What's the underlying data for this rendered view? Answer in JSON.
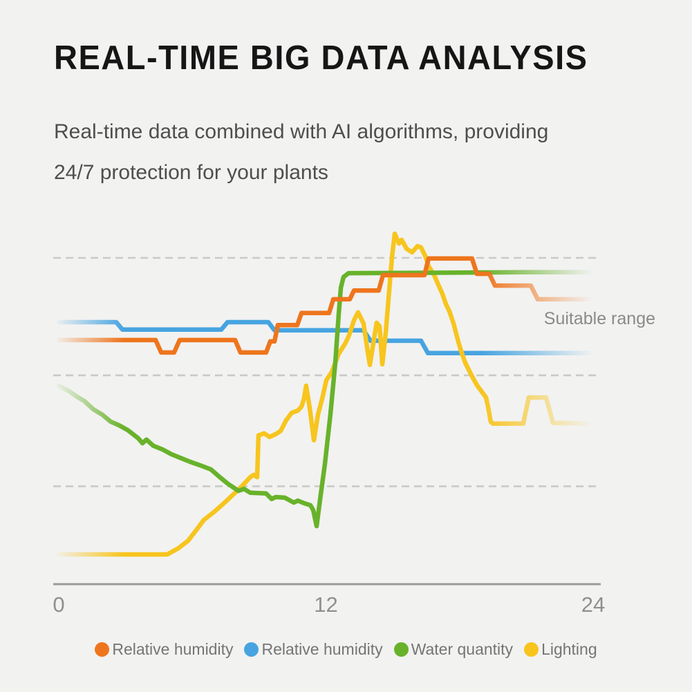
{
  "page": {
    "background": "#f2f2f1",
    "title": "REAL-TIME BIG DATA ANALYSIS",
    "subtitle_line1": "Real-time data combined with AI algorithms, providing",
    "subtitle_line2": "24/7 protection for your plants"
  },
  "chart_data": {
    "type": "line",
    "title": "",
    "xlabel": "",
    "ylabel": "",
    "annotation": "Suitable range",
    "x_axis": {
      "range": [
        0,
        24
      ],
      "ticks": [
        {
          "value": 0,
          "label": "0"
        },
        {
          "value": 12,
          "label": "12"
        },
        {
          "value": 24,
          "label": "24"
        }
      ]
    },
    "y_axis": {
      "range": [
        0,
        110
      ],
      "labels_visible": false,
      "gridline_values": [
        100,
        64,
        30
      ],
      "grid_style": "dashed"
    },
    "colors": {
      "orange": "#ee751d",
      "blue": "#47a4e0",
      "green": "#68b22b",
      "yellow": "#f7c51e",
      "gridline": "#c9c9c9",
      "axis": "#9b9b9b"
    },
    "series": [
      {
        "key": "relative-humidity-blue",
        "name": "Relative humidity",
        "color": "#47a4e0",
        "points": [
          [
            0,
            80.3
          ],
          [
            2.58,
            80.3
          ],
          [
            2.86,
            78
          ],
          [
            7.3,
            78
          ],
          [
            7.58,
            80.3
          ],
          [
            9.41,
            80.3
          ],
          [
            9.69,
            77.8
          ],
          [
            13.69,
            77.8
          ],
          [
            14,
            74.6
          ],
          [
            16.27,
            74.6
          ],
          [
            16.58,
            70.8
          ],
          [
            24,
            70.8
          ]
        ]
      },
      {
        "key": "lighting-yellow",
        "name": "Lighting",
        "color": "#f7c51e",
        "points": [
          [
            0,
            9.1
          ],
          [
            4.87,
            9.1
          ],
          [
            5.37,
            11
          ],
          [
            5.81,
            13.3
          ],
          [
            6.27,
            17.4
          ],
          [
            6.52,
            19.7
          ],
          [
            6.99,
            22.2
          ],
          [
            7.45,
            25
          ],
          [
            7.92,
            28
          ],
          [
            8.29,
            30.5
          ],
          [
            8.6,
            32.8
          ],
          [
            8.76,
            33.5
          ],
          [
            8.91,
            32.8
          ],
          [
            8.97,
            45.6
          ],
          [
            9.22,
            46.2
          ],
          [
            9.47,
            45.1
          ],
          [
            9.75,
            46
          ],
          [
            9.97,
            47
          ],
          [
            10.21,
            50.2
          ],
          [
            10.46,
            52.5
          ],
          [
            10.74,
            53.2
          ],
          [
            10.9,
            54.4
          ],
          [
            11.02,
            57
          ],
          [
            11.11,
            60.8
          ],
          [
            11.27,
            54
          ],
          [
            11.39,
            47.7
          ],
          [
            11.46,
            44.1
          ],
          [
            11.64,
            51.9
          ],
          [
            11.83,
            56.8
          ],
          [
            12.02,
            62.5
          ],
          [
            12.26,
            65
          ],
          [
            12.57,
            70.6
          ],
          [
            12.88,
            73.9
          ],
          [
            13.04,
            76.3
          ],
          [
            13.26,
            80.9
          ],
          [
            13.44,
            83.3
          ],
          [
            13.69,
            79.9
          ],
          [
            13.88,
            71
          ],
          [
            13.97,
            67.2
          ],
          [
            14.16,
            75.2
          ],
          [
            14.28,
            80.1
          ],
          [
            14.41,
            79
          ],
          [
            14.53,
            67.4
          ],
          [
            14.69,
            77.3
          ],
          [
            14.84,
            90
          ],
          [
            14.97,
            100.6
          ],
          [
            15.09,
            107.4
          ],
          [
            15.28,
            104.4
          ],
          [
            15.4,
            105.5
          ],
          [
            15.62,
            102.8
          ],
          [
            15.87,
            101.7
          ],
          [
            16.11,
            103.6
          ],
          [
            16.27,
            103.2
          ],
          [
            16.46,
            100.6
          ],
          [
            16.61,
            97.5
          ],
          [
            16.86,
            94.7
          ],
          [
            17.05,
            91.7
          ],
          [
            17.23,
            89
          ],
          [
            17.39,
            85.8
          ],
          [
            17.54,
            83.7
          ],
          [
            17.73,
            79.9
          ],
          [
            17.95,
            74.2
          ],
          [
            18.1,
            70.8
          ],
          [
            18.26,
            67.8
          ],
          [
            18.54,
            64
          ],
          [
            18.78,
            61
          ],
          [
            19.03,
            58.7
          ],
          [
            19.19,
            57.2
          ],
          [
            19.31,
            53.4
          ],
          [
            19.4,
            49.8
          ],
          [
            19.5,
            49.2
          ],
          [
            20.86,
            49.2
          ],
          [
            21.11,
            57.2
          ],
          [
            21.89,
            57.2
          ],
          [
            22.2,
            49.4
          ],
          [
            24,
            49.2
          ]
        ]
      },
      {
        "key": "water-quantity-green",
        "name": "Water quantity",
        "color": "#68b22b",
        "points": [
          [
            0,
            60.8
          ],
          [
            0.47,
            59.1
          ],
          [
            0.78,
            57.6
          ],
          [
            1.15,
            56.1
          ],
          [
            1.55,
            53.6
          ],
          [
            1.96,
            51.9
          ],
          [
            2.33,
            49.8
          ],
          [
            2.7,
            48.7
          ],
          [
            3.1,
            47.2
          ],
          [
            3.57,
            44.7
          ],
          [
            3.76,
            43.2
          ],
          [
            3.94,
            44.3
          ],
          [
            4.25,
            42.4
          ],
          [
            4.66,
            41.3
          ],
          [
            5.06,
            39.8
          ],
          [
            5.5,
            38.6
          ],
          [
            5.9,
            37.5
          ],
          [
            6.36,
            36.4
          ],
          [
            6.83,
            35.2
          ],
          [
            7.23,
            32.8
          ],
          [
            7.61,
            30.7
          ],
          [
            8.07,
            28.6
          ],
          [
            8.32,
            29.2
          ],
          [
            8.6,
            28
          ],
          [
            9.31,
            27.8
          ],
          [
            9.56,
            26.1
          ],
          [
            9.75,
            26.7
          ],
          [
            10.15,
            26.5
          ],
          [
            10.56,
            25
          ],
          [
            10.74,
            25.6
          ],
          [
            11.02,
            24.8
          ],
          [
            11.3,
            24.2
          ],
          [
            11.43,
            22.7
          ],
          [
            11.58,
            17.8
          ],
          [
            11.74,
            26.1
          ],
          [
            11.95,
            36.7
          ],
          [
            12.2,
            51.9
          ],
          [
            12.42,
            67.8
          ],
          [
            12.57,
            82.6
          ],
          [
            12.67,
            90.9
          ],
          [
            12.79,
            94.1
          ],
          [
            13.01,
            95.3
          ],
          [
            20.96,
            95.6
          ],
          [
            24,
            95.6
          ]
        ]
      },
      {
        "key": "relative-humidity-orange",
        "name": "Relative humidity",
        "color": "#ee751d",
        "points": [
          [
            0,
            74.8
          ],
          [
            4.35,
            74.8
          ],
          [
            4.6,
            71
          ],
          [
            5.18,
            71
          ],
          [
            5.43,
            74.8
          ],
          [
            7.92,
            74.8
          ],
          [
            8.16,
            71
          ],
          [
            9.31,
            71
          ],
          [
            9.5,
            74.4
          ],
          [
            9.69,
            74.4
          ],
          [
            9.84,
            79.4
          ],
          [
            10.71,
            79.4
          ],
          [
            10.9,
            83.1
          ],
          [
            12.14,
            83.1
          ],
          [
            12.33,
            87.3
          ],
          [
            13.07,
            87.3
          ],
          [
            13.26,
            90
          ],
          [
            14.37,
            90
          ],
          [
            14.56,
            94.7
          ],
          [
            16.42,
            94.7
          ],
          [
            16.61,
            99.8
          ],
          [
            18.56,
            99.8
          ],
          [
            18.78,
            95.1
          ],
          [
            19.34,
            95.1
          ],
          [
            19.59,
            91.5
          ],
          [
            21.2,
            91.5
          ],
          [
            21.51,
            87.3
          ],
          [
            24,
            87.3
          ]
        ]
      }
    ]
  },
  "legend": {
    "items": [
      {
        "key": "relative-humidity-orange",
        "label": "Relative humidity",
        "color": "#ee751d"
      },
      {
        "key": "relative-humidity-blue",
        "label": "Relative humidity",
        "color": "#47a4e0"
      },
      {
        "key": "water-quantity-green",
        "label": "Water quantity",
        "color": "#68b22b"
      },
      {
        "key": "lighting-yellow",
        "label": "Lighting",
        "color": "#f7c51e"
      }
    ]
  }
}
